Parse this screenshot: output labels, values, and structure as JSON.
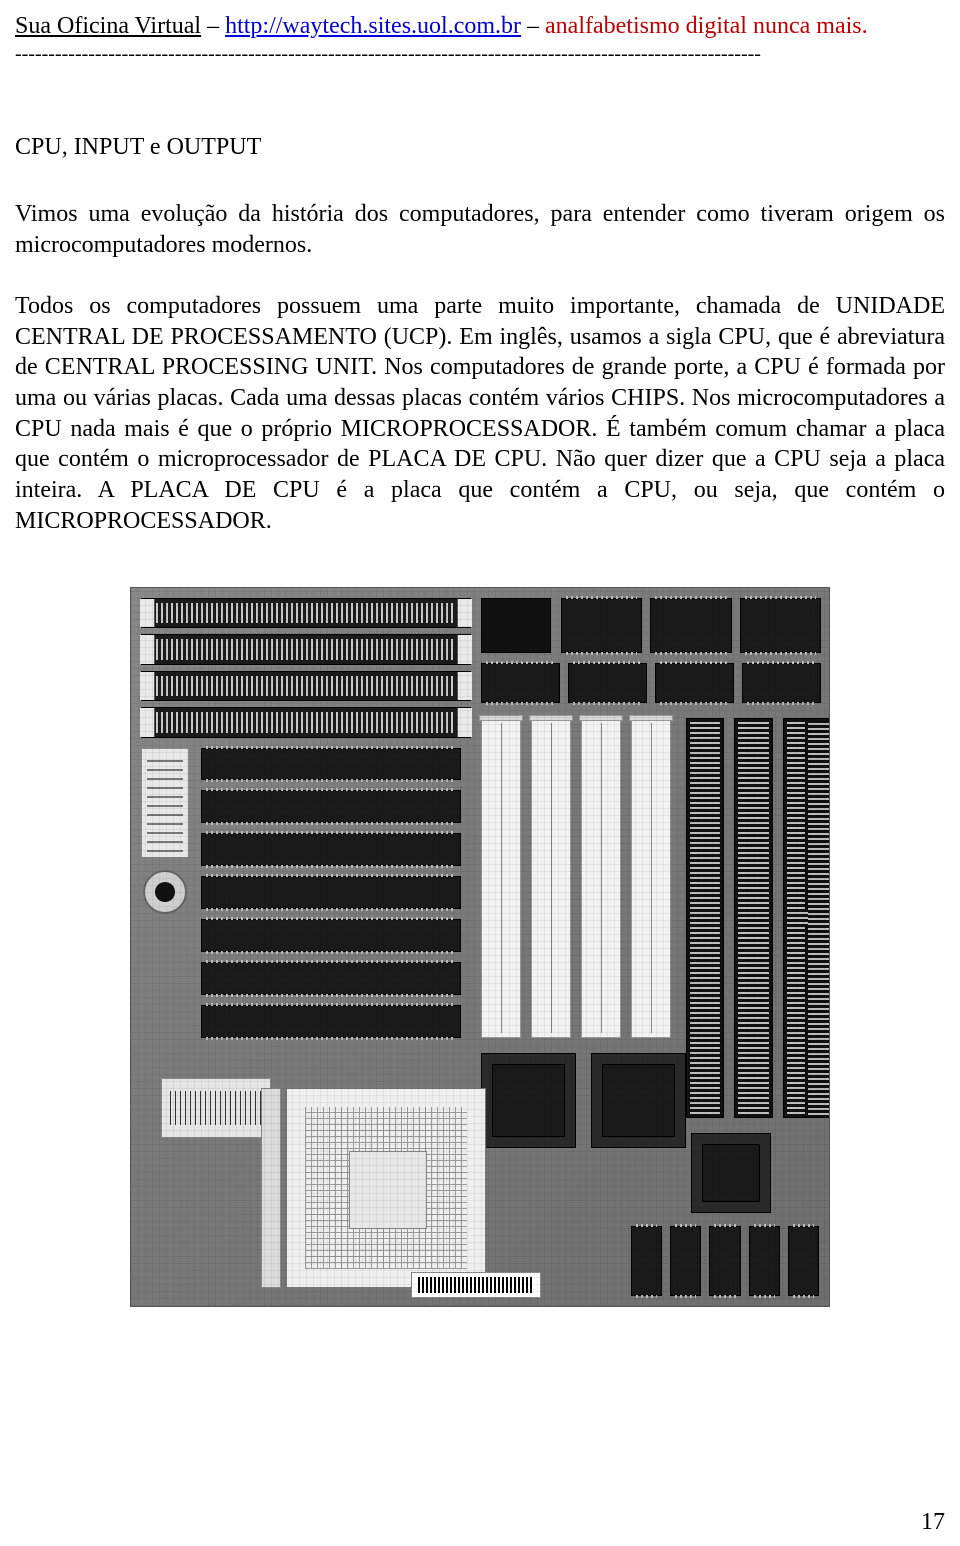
{
  "header": {
    "site_name": "Sua Oficina Virtual",
    "separator": " – ",
    "url": "http://waytech.sites.uol.com.br",
    "tagline": "analfabetismo digital nunca mais.",
    "dash_line": "----------------------------------------------------------------------------------------------------------------"
  },
  "section": {
    "title": "CPU, INPUT e OUTPUT"
  },
  "paragraphs": {
    "p1": "Vimos uma evolução da história dos computadores, para entender como tiveram origem os microcomputadores modernos.",
    "p2": "Todos os computadores possuem uma parte muito importante, chamada de UNIDADE CENTRAL DE PROCESSAMENTO (UCP). Em inglês, usamos a sigla CPU, que é abreviatura de CENTRAL PROCESSING UNIT. Nos computadores de grande porte, a CPU é formada por uma ou várias placas. Cada uma dessas placas contém vários CHIPS. Nos microcomputadores a CPU nada mais é que o próprio MICROPROCESSADOR. É também comum chamar a placa que contém o microprocessador de PLACA DE CPU. Não quer dizer que a CPU seja a placa inteira. A PLACA DE CPU é a placa que contém a CPU, ou seja, que contém o MICROPROCESSADOR."
  },
  "figure": {
    "alt": "motherboard-photo",
    "colors": {
      "pcb": "#787878",
      "slot_white": "#f2f2f2",
      "slot_dark": "#111111",
      "chip": "#2a2a2a",
      "socket": "#efefef"
    }
  },
  "page_number": "17",
  "colors": {
    "text": "#000000",
    "link": "#0000e0",
    "tagline": "#c00000",
    "background": "#ffffff"
  }
}
